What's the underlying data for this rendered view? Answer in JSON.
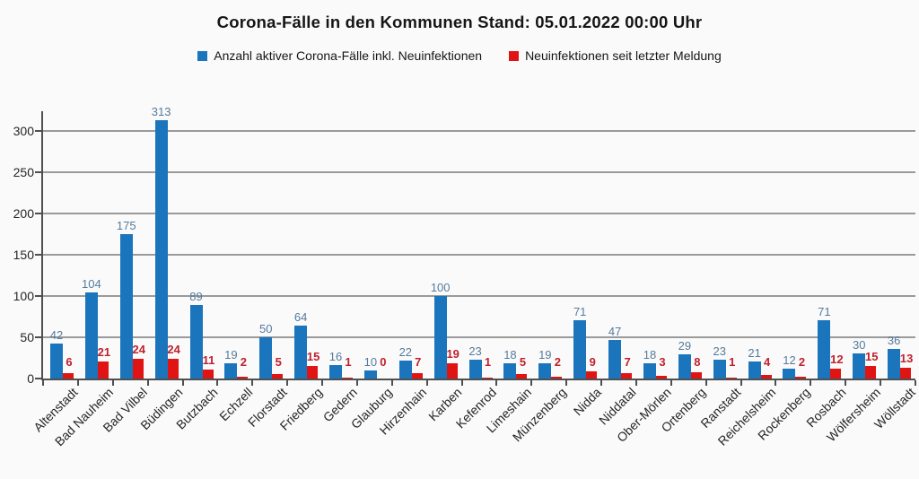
{
  "chart_data": {
    "type": "bar",
    "title": "Corona-Fälle in den Kommunen Stand: 05.01.2022 00:00 Uhr",
    "categories": [
      "Altenstadt",
      "Bad Nauheim",
      "Bad Vilbel",
      "Büdingen",
      "Butzbach",
      "Echzell",
      "Florstadt",
      "Friedberg",
      "Gedern",
      "Glauburg",
      "Hirzenhain",
      "Karben",
      "Kefenrod",
      "Limeshain",
      "Münzenberg",
      "Nidda",
      "Niddatal",
      "Ober-Mörlen",
      "Ortenberg",
      "Ranstadt",
      "Reichelsheim",
      "Rockenberg",
      "Rosbach",
      "Wölfersheim",
      "Wöllstadt"
    ],
    "series": [
      {
        "name": "Anzahl aktiver Corona-Fälle inkl. Neuinfektionen",
        "color": "#1b75bc",
        "label_color": "#557b9d",
        "values": [
          42,
          104,
          175,
          313,
          89,
          19,
          50,
          64,
          16,
          10,
          22,
          100,
          23,
          18,
          19,
          71,
          47,
          18,
          29,
          23,
          21,
          12,
          71,
          30,
          36
        ]
      },
      {
        "name": "Neuinfektionen seit letzter Meldung",
        "color": "#e11414",
        "label_color": "#c0202c",
        "values": [
          6,
          21,
          24,
          24,
          11,
          2,
          5,
          15,
          1,
          0,
          7,
          19,
          1,
          5,
          2,
          9,
          7,
          3,
          8,
          1,
          4,
          2,
          12,
          15,
          13
        ]
      }
    ],
    "yticks": [
      0,
      50,
      100,
      150,
      200,
      250,
      300
    ],
    "ylim": [
      0,
      330
    ],
    "grid": true,
    "legend_position": "top"
  }
}
